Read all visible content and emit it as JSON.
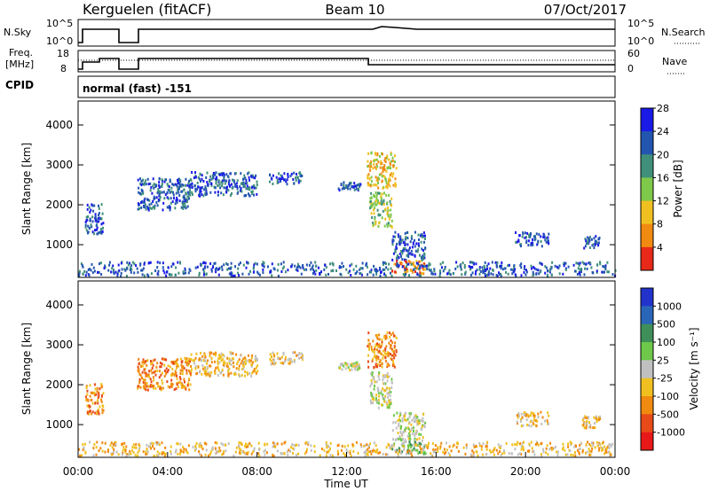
{
  "header": {
    "station": "Kerguelen (fitACF)",
    "beam": "Beam 10",
    "date": "07/Oct/2017"
  },
  "noise_panel": {
    "left_label": "N.Sky",
    "right_label": "N.Search",
    "left_ticks": [
      "10^5",
      "10^0"
    ],
    "right_ticks": [
      "10^5",
      "10^0"
    ]
  },
  "freq_panel": {
    "left_label_line1": "Freq.",
    "left_label_line2": "[MHz]",
    "right_label": "Nave",
    "left_ticks": [
      "18",
      "8"
    ],
    "right_ticks": [
      "60",
      "0"
    ]
  },
  "cpid": {
    "label": "CPID",
    "mode": "normal (fast) -151"
  },
  "x_axis": {
    "title": "Time UT",
    "ticks": [
      "00:00",
      "04:00",
      "08:00",
      "12:00",
      "16:00",
      "20:00",
      "00:00"
    ]
  },
  "chart_data": [
    {
      "type": "heatmap",
      "name": "power",
      "ylabel": "Slant Range [km]",
      "yticks": [
        "1000",
        "2000",
        "3000",
        "4000"
      ],
      "ylim": [
        180,
        4600
      ],
      "colorbar_label": "Power [dB]",
      "colorbar_ticks": [
        "4",
        "8",
        "12",
        "16",
        "20",
        "24",
        "28"
      ],
      "colors": [
        "#1a1ae6",
        "#2255b0",
        "#3f8f7a",
        "#7ec84a",
        "#f0c020",
        "#f08a10",
        "#e82818"
      ],
      "echo_regions": [
        {
          "t": [
            0.3,
            1.1
          ],
          "r": [
            1250,
            2000
          ],
          "c": 1
        },
        {
          "t": [
            2.6,
            5.0
          ],
          "r": [
            1850,
            2650
          ],
          "c": 1
        },
        {
          "t": [
            5.0,
            8.0
          ],
          "r": [
            2200,
            2800
          ],
          "c": 1
        },
        {
          "t": [
            8.5,
            10.0
          ],
          "r": [
            2500,
            2800
          ],
          "c": 1
        },
        {
          "t": [
            11.6,
            12.6
          ],
          "r": [
            2350,
            2550
          ],
          "c": 1
        },
        {
          "t": [
            12.9,
            14.2
          ],
          "r": [
            2400,
            3300
          ],
          "c": 4
        },
        {
          "t": [
            13.0,
            14.0
          ],
          "r": [
            1400,
            2300
          ],
          "c": 3
        },
        {
          "t": [
            14.0,
            15.5
          ],
          "r": [
            600,
            1300
          ],
          "c": 1
        },
        {
          "t": [
            14.0,
            15.5
          ],
          "r": [
            250,
            600
          ],
          "c": 5
        },
        {
          "t": [
            19.5,
            21.0
          ],
          "r": [
            950,
            1300
          ],
          "c": 1
        },
        {
          "t": [
            22.5,
            23.3
          ],
          "r": [
            900,
            1200
          ],
          "c": 1
        },
        {
          "t": [
            0.0,
            24.0
          ],
          "r": [
            200,
            550
          ],
          "c": 1
        }
      ]
    },
    {
      "type": "heatmap",
      "name": "velocity",
      "ylabel": "Slant Range [km]",
      "yticks": [
        "1000",
        "2000",
        "3000",
        "4000"
      ],
      "ylim": [
        180,
        4600
      ],
      "colorbar_label": "Velocity [m s⁻¹]",
      "colorbar_ticks": [
        "1000",
        "500",
        "100",
        "25",
        "-25",
        "-100",
        "-500",
        "-1000"
      ],
      "colors": [
        "#2233cc",
        "#2a66b8",
        "#3f8f5a",
        "#6ec84a",
        "#c0c0c0",
        "#f0c020",
        "#f08a10",
        "#e84a18",
        "#e81818"
      ],
      "echo_regions": [
        {
          "t": [
            0.3,
            1.1
          ],
          "r": [
            1250,
            2000
          ],
          "c": 6
        },
        {
          "t": [
            2.6,
            5.0
          ],
          "r": [
            1850,
            2650
          ],
          "c": 6
        },
        {
          "t": [
            5.0,
            8.0
          ],
          "r": [
            2200,
            2800
          ],
          "c": 5
        },
        {
          "t": [
            8.5,
            10.0
          ],
          "r": [
            2500,
            2800
          ],
          "c": 5
        },
        {
          "t": [
            11.6,
            12.6
          ],
          "r": [
            2350,
            2550
          ],
          "c": 4
        },
        {
          "t": [
            12.9,
            14.2
          ],
          "r": [
            2400,
            3300
          ],
          "c": 6
        },
        {
          "t": [
            13.0,
            14.0
          ],
          "r": [
            1400,
            2300
          ],
          "c": 4
        },
        {
          "t": [
            14.0,
            15.5
          ],
          "r": [
            600,
            1300
          ],
          "c": 4
        },
        {
          "t": [
            14.0,
            15.5
          ],
          "r": [
            250,
            600
          ],
          "c": 3
        },
        {
          "t": [
            19.5,
            21.0
          ],
          "r": [
            950,
            1300
          ],
          "c": 5
        },
        {
          "t": [
            22.5,
            23.3
          ],
          "r": [
            900,
            1200
          ],
          "c": 5
        },
        {
          "t": [
            0.0,
            24.0
          ],
          "r": [
            200,
            550
          ],
          "c": 5
        }
      ]
    }
  ]
}
